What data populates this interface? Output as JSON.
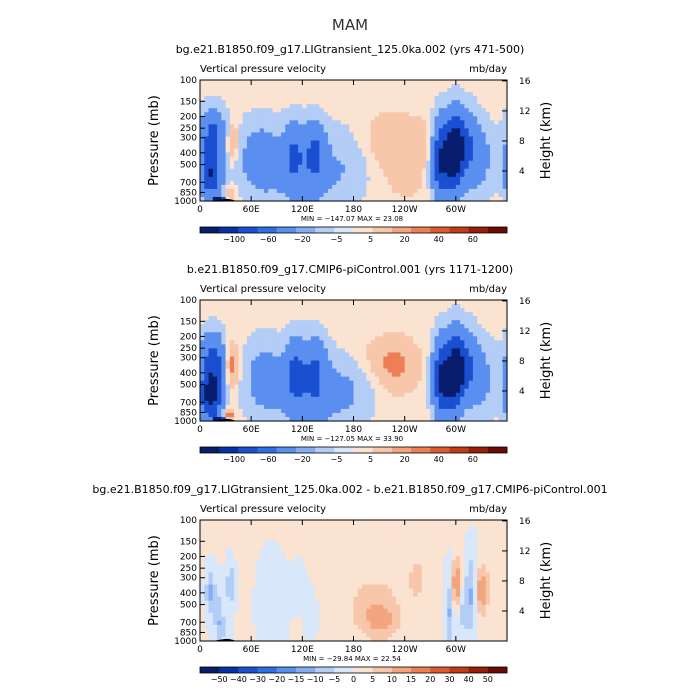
{
  "figure": {
    "title": "MAM"
  },
  "chart_data": [
    {
      "type": "heatmap",
      "title": "bg.e21.B1850.f09_g17.LIGtransient_125.0ka.002 (yrs 471-500)",
      "variable": "Vertical pressure velocity",
      "units": "mb/day",
      "xlabel": "",
      "ylabel": "Pressure (mb)",
      "ylabel_right": "Height (km)",
      "x_ticks": [
        "0",
        "60E",
        "120E",
        "180",
        "120W",
        "60W"
      ],
      "y_ticks": [
        "100",
        "150",
        "200",
        "250",
        "300",
        "400",
        "500",
        "700",
        "850",
        "1000"
      ],
      "y_ticks_right": [
        "16",
        "12",
        "8",
        "4"
      ],
      "min_max": "MIN = −147.07   MAX =   23.08",
      "levels": [
        "−100",
        "−60",
        "−20",
        "−5",
        "5",
        "20",
        "40",
        "60"
      ],
      "colors": [
        "#081d6e",
        "#0a30a8",
        "#1a4fd1",
        "#2f6fe6",
        "#5a8ff0",
        "#86adf3",
        "#b3cdf6",
        "#d9e7fb",
        "#fbe3d2",
        "#f8c7ab",
        "#f3a57f",
        "#ec7f54",
        "#de5a2f",
        "#c23a17",
        "#981f0a",
        "#6b0d03"
      ],
      "blobs": [
        {
          "lon": 15,
          "p": 300,
          "sx": 10,
          "sy": 0.35,
          "a": -75
        },
        {
          "lon": 12,
          "p": 620,
          "sx": 9,
          "sy": 0.28,
          "a": -95
        },
        {
          "lon": 22,
          "p": 980,
          "sx": 5,
          "sy": 0.05,
          "a": -130
        },
        {
          "lon": 38,
          "p": 330,
          "sx": 5,
          "sy": 0.25,
          "a": 30
        },
        {
          "lon": 34,
          "p": 880,
          "sx": 5,
          "sy": 0.12,
          "a": 25
        },
        {
          "lon": 70,
          "p": 450,
          "sx": 18,
          "sy": 0.5,
          "a": -35
        },
        {
          "lon": 110,
          "p": 400,
          "sx": 8,
          "sy": 0.4,
          "a": -50
        },
        {
          "lon": 135,
          "p": 400,
          "sx": 8,
          "sy": 0.4,
          "a": -55
        },
        {
          "lon": 122,
          "p": 600,
          "sx": 25,
          "sy": 0.55,
          "a": -28
        },
        {
          "lon": 175,
          "p": 500,
          "sx": 22,
          "sy": 0.55,
          "a": -18
        },
        {
          "lon": 220,
          "p": 330,
          "sx": 30,
          "sy": 0.4,
          "a": 16
        },
        {
          "lon": 265,
          "p": 350,
          "sx": 12,
          "sy": 0.3,
          "a": 14
        },
        {
          "lon": 240,
          "p": 800,
          "sx": 35,
          "sy": 0.3,
          "a": 5
        },
        {
          "lon": 283,
          "p": 450,
          "sx": 8,
          "sy": 0.5,
          "a": -110
        },
        {
          "lon": 298,
          "p": 400,
          "sx": 6,
          "sy": 0.5,
          "a": -100
        },
        {
          "lon": 308,
          "p": 350,
          "sx": 10,
          "sy": 0.45,
          "a": -70
        },
        {
          "lon": 326,
          "p": 450,
          "sx": 14,
          "sy": 0.5,
          "a": -30
        }
      ]
    },
    {
      "type": "heatmap",
      "title": "b.e21.B1850.f09_g17.CMIP6-piControl.001 (yrs 1171-1200)",
      "variable": "Vertical pressure velocity",
      "units": "mb/day",
      "xlabel": "",
      "ylabel": "Pressure (mb)",
      "ylabel_right": "Height (km)",
      "x_ticks": [
        "0",
        "60E",
        "120E",
        "180",
        "120W",
        "60W"
      ],
      "y_ticks": [
        "100",
        "150",
        "200",
        "250",
        "300",
        "400",
        "500",
        "700",
        "850",
        "1000"
      ],
      "y_ticks_right": [
        "16",
        "12",
        "8",
        "4"
      ],
      "min_max": "MIN = −127.05   MAX =   33.90",
      "levels": [
        "−100",
        "−60",
        "−20",
        "−5",
        "5",
        "20",
        "40",
        "60"
      ],
      "colors": [
        "#081d6e",
        "#0a30a8",
        "#1a4fd1",
        "#2f6fe6",
        "#5a8ff0",
        "#86adf3",
        "#b3cdf6",
        "#d9e7fb",
        "#fbe3d2",
        "#f8c7ab",
        "#f3a57f",
        "#ec7f54",
        "#de5a2f",
        "#c23a17",
        "#981f0a",
        "#6b0d03"
      ],
      "blobs": [
        {
          "lon": 15,
          "p": 350,
          "sx": 10,
          "sy": 0.4,
          "a": -85
        },
        {
          "lon": 12,
          "p": 650,
          "sx": 9,
          "sy": 0.28,
          "a": -100
        },
        {
          "lon": 22,
          "p": 980,
          "sx": 5,
          "sy": 0.05,
          "a": -120
        },
        {
          "lon": 37,
          "p": 350,
          "sx": 6,
          "sy": 0.3,
          "a": 35
        },
        {
          "lon": 34,
          "p": 900,
          "sx": 5,
          "sy": 0.1,
          "a": 30
        },
        {
          "lon": 75,
          "p": 450,
          "sx": 18,
          "sy": 0.5,
          "a": -30
        },
        {
          "lon": 112,
          "p": 400,
          "sx": 8,
          "sy": 0.45,
          "a": -55
        },
        {
          "lon": 135,
          "p": 400,
          "sx": 9,
          "sy": 0.45,
          "a": -50
        },
        {
          "lon": 125,
          "p": 600,
          "sx": 25,
          "sy": 0.55,
          "a": -28
        },
        {
          "lon": 175,
          "p": 550,
          "sx": 22,
          "sy": 0.5,
          "a": -20
        },
        {
          "lon": 230,
          "p": 350,
          "sx": 18,
          "sy": 0.35,
          "a": 22
        },
        {
          "lon": 200,
          "p": 300,
          "sx": 25,
          "sy": 0.3,
          "a": 8
        },
        {
          "lon": 285,
          "p": 450,
          "sx": 8,
          "sy": 0.5,
          "a": -115
        },
        {
          "lon": 300,
          "p": 400,
          "sx": 6,
          "sy": 0.5,
          "a": -100
        },
        {
          "lon": 310,
          "p": 350,
          "sx": 10,
          "sy": 0.45,
          "a": -65
        },
        {
          "lon": 330,
          "p": 450,
          "sx": 14,
          "sy": 0.5,
          "a": -25
        }
      ]
    },
    {
      "type": "heatmap",
      "title": "bg.e21.B1850.f09_g17.LIGtransient_125.0ka.002 - b.e21.B1850.f09_g17.CMIP6-piControl.001",
      "variable": "Vertical pressure velocity",
      "units": "mb/day",
      "xlabel": "",
      "ylabel": "Pressure (mb)",
      "ylabel_right": "Height (km)",
      "x_ticks": [
        "0",
        "60E",
        "120E",
        "180",
        "120W",
        "60W"
      ],
      "y_ticks": [
        "100",
        "150",
        "200",
        "250",
        "300",
        "400",
        "500",
        "700",
        "850",
        "1000"
      ],
      "y_ticks_right": [
        "16",
        "12",
        "8",
        "4"
      ],
      "min_max": "MIN = −29.84   MAX =   22.54",
      "levels": [
        "−50",
        "−40",
        "−30",
        "−20",
        "−15",
        "−10",
        "−5",
        "0",
        "5",
        "10",
        "15",
        "20",
        "30",
        "40",
        "50"
      ],
      "colors": [
        "#081d6e",
        "#0a30a8",
        "#1a4fd1",
        "#2f6fe6",
        "#5a8ff0",
        "#86adf3",
        "#b3cdf6",
        "#d9e7fb",
        "#fbe3d2",
        "#f8c7ab",
        "#f3a57f",
        "#ec7f54",
        "#de5a2f",
        "#c23a17",
        "#981f0a",
        "#6b0d03"
      ],
      "blobs": [
        {
          "lon": 180,
          "p": 450,
          "sx": 120,
          "sy": 1.2,
          "a": 1.5
        },
        {
          "lon": 12,
          "p": 400,
          "sx": 4,
          "sy": 0.3,
          "a": -12
        },
        {
          "lon": 22,
          "p": 600,
          "sx": 4,
          "sy": 0.4,
          "a": -8
        },
        {
          "lon": 36,
          "p": 350,
          "sx": 4,
          "sy": 0.3,
          "a": -10
        },
        {
          "lon": 28,
          "p": 800,
          "sx": 6,
          "sy": 0.2,
          "a": -6
        },
        {
          "lon": 85,
          "p": 500,
          "sx": 12,
          "sy": 0.6,
          "a": -6
        },
        {
          "lon": 115,
          "p": 350,
          "sx": 6,
          "sy": 0.3,
          "a": -6
        },
        {
          "lon": 130,
          "p": 600,
          "sx": 6,
          "sy": 0.4,
          "a": -4
        },
        {
          "lon": 205,
          "p": 550,
          "sx": 20,
          "sy": 0.4,
          "a": 8
        },
        {
          "lon": 215,
          "p": 700,
          "sx": 12,
          "sy": 0.2,
          "a": 6
        },
        {
          "lon": 255,
          "p": 300,
          "sx": 10,
          "sy": 0.4,
          "a": 5
        },
        {
          "lon": 300,
          "p": 350,
          "sx": 5,
          "sy": 0.35,
          "a": 18
        },
        {
          "lon": 293,
          "p": 500,
          "sx": 4,
          "sy": 0.5,
          "a": -14
        },
        {
          "lon": 308,
          "p": 550,
          "sx": 5,
          "sy": 0.4,
          "a": -8
        },
        {
          "lon": 330,
          "p": 380,
          "sx": 6,
          "sy": 0.35,
          "a": 14
        },
        {
          "lon": 318,
          "p": 400,
          "sx": 5,
          "sy": 0.5,
          "a": -12
        }
      ]
    }
  ]
}
